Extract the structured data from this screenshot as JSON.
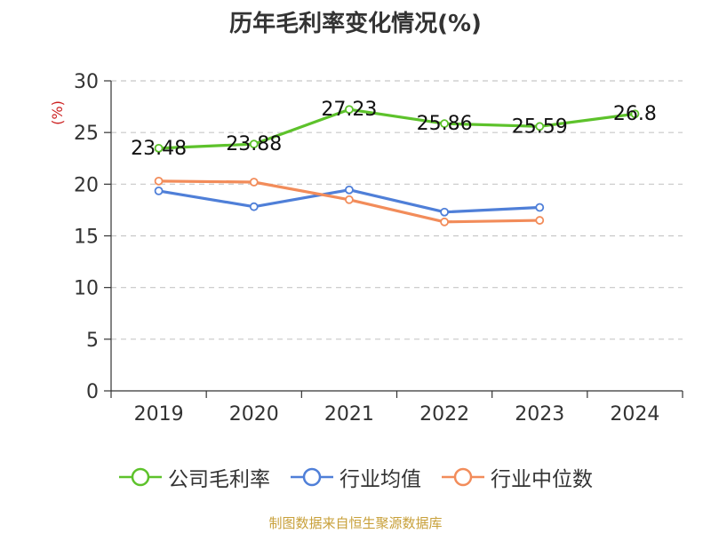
{
  "chart_data": {
    "type": "line",
    "title": "历年毛利率变化情况(%)",
    "ylabel": "(%)",
    "xlabel": "",
    "categories": [
      "2019",
      "2020",
      "2021",
      "2022",
      "2023",
      "2024"
    ],
    "ylim": [
      0,
      30
    ],
    "yticks": [
      0,
      5,
      10,
      15,
      20,
      25,
      30
    ],
    "grid": true,
    "legend_position": "bottom",
    "series": [
      {
        "name": "公司毛利率",
        "color": "#5dc22b",
        "values": [
          23.48,
          23.88,
          27.23,
          25.86,
          25.59,
          26.8
        ],
        "labels": [
          "23.48",
          "23.88",
          "27.23",
          "25.86",
          "25.59",
          "26.8"
        ]
      },
      {
        "name": "行业均值",
        "color": "#4f7fd8",
        "values": [
          19.35,
          17.82,
          19.45,
          17.3,
          17.75,
          null
        ]
      },
      {
        "name": "行业中位数",
        "color": "#f28c5a",
        "values": [
          20.3,
          20.2,
          18.5,
          16.35,
          16.5,
          null
        ]
      }
    ]
  },
  "source": "制图数据来自恒生聚源数据库"
}
